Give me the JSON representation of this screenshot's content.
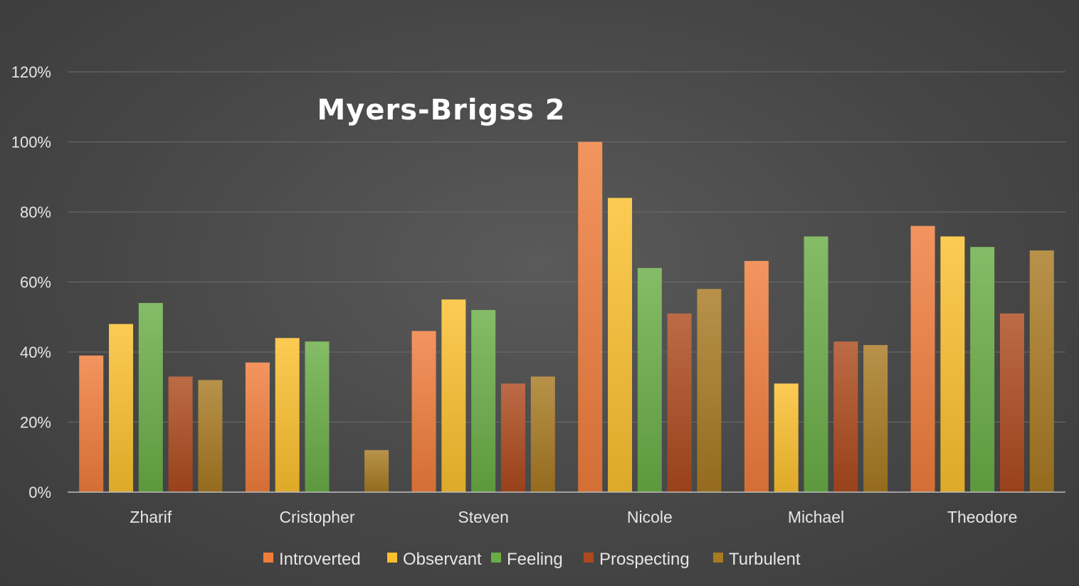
{
  "chart_data": {
    "type": "bar",
    "title": "Myers-Brigss 2",
    "xlabel": "",
    "ylabel": "",
    "categories": [
      "Zharif",
      "Cristopher",
      "Steven",
      "Nicole",
      "Michael",
      "Theodore"
    ],
    "y_ticks": [
      "0%",
      "20%",
      "40%",
      "60%",
      "80%",
      "100%",
      "120%"
    ],
    "ylim": [
      0,
      120
    ],
    "grid": true,
    "legend_position": "bottom",
    "series": [
      {
        "name": "Introverted",
        "color": "#f07d3c",
        "values": [
          39,
          37,
          46,
          100,
          66,
          76
        ]
      },
      {
        "name": "Observant",
        "color": "#fbc02d",
        "values": [
          48,
          44,
          55,
          84,
          31,
          73
        ]
      },
      {
        "name": "Feeling",
        "color": "#6aad46",
        "values": [
          54,
          43,
          52,
          64,
          73,
          70
        ]
      },
      {
        "name": "Prospecting",
        "color": "#ad4a1d",
        "values": [
          33,
          0,
          31,
          51,
          43,
          51
        ]
      },
      {
        "name": "Turbulent",
        "color": "#a87a22",
        "values": [
          32,
          12,
          33,
          58,
          42,
          69
        ]
      }
    ]
  }
}
